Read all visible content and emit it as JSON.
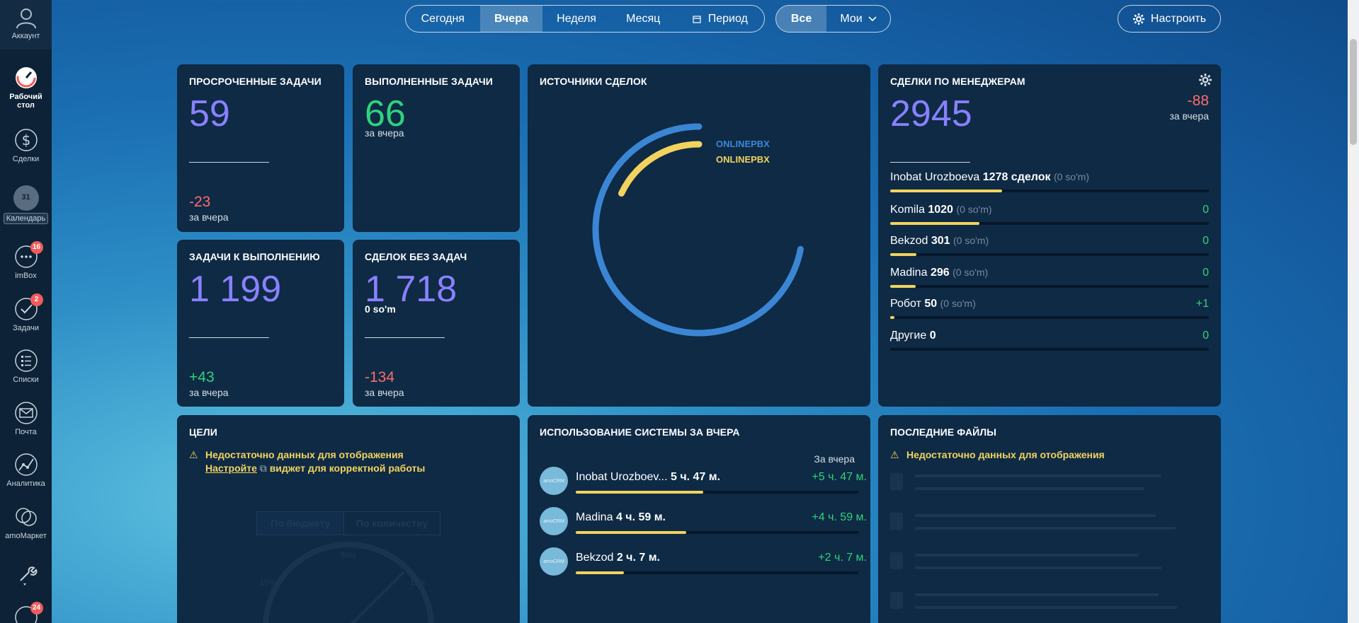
{
  "sidebar": {
    "account": "Аккаунт",
    "items": [
      {
        "label": "Рабочий стол",
        "icon": "speedometer-icon"
      },
      {
        "label": "Сделки",
        "icon": "dollar-icon"
      },
      {
        "label": "Календарь",
        "icon": "calendar-icon"
      },
      {
        "label": "imBox",
        "icon": "chat-icon",
        "badge": "16"
      },
      {
        "label": "Задачи",
        "icon": "check-icon",
        "badge": "2"
      },
      {
        "label": "Списки",
        "icon": "list-icon"
      },
      {
        "label": "Почта",
        "icon": "mail-icon"
      },
      {
        "label": "Аналитика",
        "icon": "analytics-icon"
      },
      {
        "label": "amoМаркет",
        "icon": "market-icon"
      },
      {
        "label": "",
        "icon": "tools-icon"
      },
      {
        "label": "",
        "icon": "profile-icon",
        "badge": "24"
      }
    ],
    "calendar_day": "31"
  },
  "topbar": {
    "periods": [
      "Сегодня",
      "Вчера",
      "Неделя",
      "Месяц",
      "Период"
    ],
    "active_period": "Вчера",
    "filters": [
      "Все",
      "Мои"
    ],
    "settings": "Настроить"
  },
  "overdue": {
    "title": "ПРОСРОЧЕННЫЕ ЗАДАЧИ",
    "value": "59",
    "change": "-23",
    "period": "за вчера"
  },
  "completed": {
    "title": "ВЫПОЛНЕННЫЕ ЗАДАЧИ",
    "value": "66",
    "period": "за вчера"
  },
  "todo": {
    "title": "ЗАДАЧИ К ВЫПОЛНЕНИЮ",
    "value": "1 199",
    "change": "+43",
    "period": "за вчера"
  },
  "no_tasks": {
    "title": "СДЕЛОК БЕЗ ЗАДАЧ",
    "value": "1 718",
    "amount": "0 so'm",
    "change": "-134",
    "period": "за вчера"
  },
  "sources": {
    "title": "ИСТОЧНИКИ СДЕЛОК",
    "legend": [
      {
        "label": "ONLINEPBX",
        "color": "#3b86d4",
        "fraction": 0.72
      },
      {
        "label": "ONLINEPBX",
        "color": "#f3d35e",
        "fraction": 0.18
      }
    ]
  },
  "managers": {
    "title": "СДЕЛКИ ПО МЕНЕДЖЕРАМ",
    "total": "2945",
    "change": "-88",
    "period": "за вчера",
    "rows": [
      {
        "name": "Inobat Urozboeva",
        "value": "1278 сделок",
        "amount": "(0 so'm)",
        "change": "",
        "fraction": 0.35
      },
      {
        "name": "Komila",
        "value": "1020",
        "amount": "(0 so'm)",
        "change": "0",
        "fraction": 0.28
      },
      {
        "name": "Bekzod",
        "value": "301",
        "amount": "(0 so'm)",
        "change": "0",
        "fraction": 0.083
      },
      {
        "name": "Madina",
        "value": "296",
        "amount": "(0 so'm)",
        "change": "0",
        "fraction": 0.081
      },
      {
        "name": "Робот",
        "value": "50",
        "amount": "(0 so'm)",
        "change": "+1",
        "fraction": 0.014
      },
      {
        "name": "Другие",
        "value": "0",
        "amount": "",
        "change": "0",
        "fraction": 0
      }
    ]
  },
  "goals": {
    "title": "ЦЕЛИ",
    "warning": "Недостаточно данных для отображения",
    "link": "Настройте",
    "hint": "виджет для корректной работы",
    "tabs": [
      "По бюджету",
      "По количеству"
    ],
    "gauge": [
      "50%",
      "15%",
      "15%"
    ]
  },
  "usage": {
    "title": "ИСПОЛЬЗОВАНИЕ СИСТЕМЫ ЗА ВЧЕРА",
    "period": "За вчера",
    "avatar_text": "amoCRM",
    "rows": [
      {
        "name": "Inobat Urozboev...",
        "time": "5 ч. 47 м.",
        "change": "+5 ч. 47 м.",
        "fraction": 0.45
      },
      {
        "name": "Madina",
        "time": "4 ч. 59 м.",
        "change": "+4 ч. 59 м.",
        "fraction": 0.39
      },
      {
        "name": "Bekzod",
        "time": "2 ч. 7 м.",
        "change": "+2 ч. 7 м.",
        "fraction": 0.17
      }
    ]
  },
  "files": {
    "title": "ПОСЛЕДНИЕ ФАЙЛЫ",
    "warning": "Недостаточно данных для отображения"
  }
}
